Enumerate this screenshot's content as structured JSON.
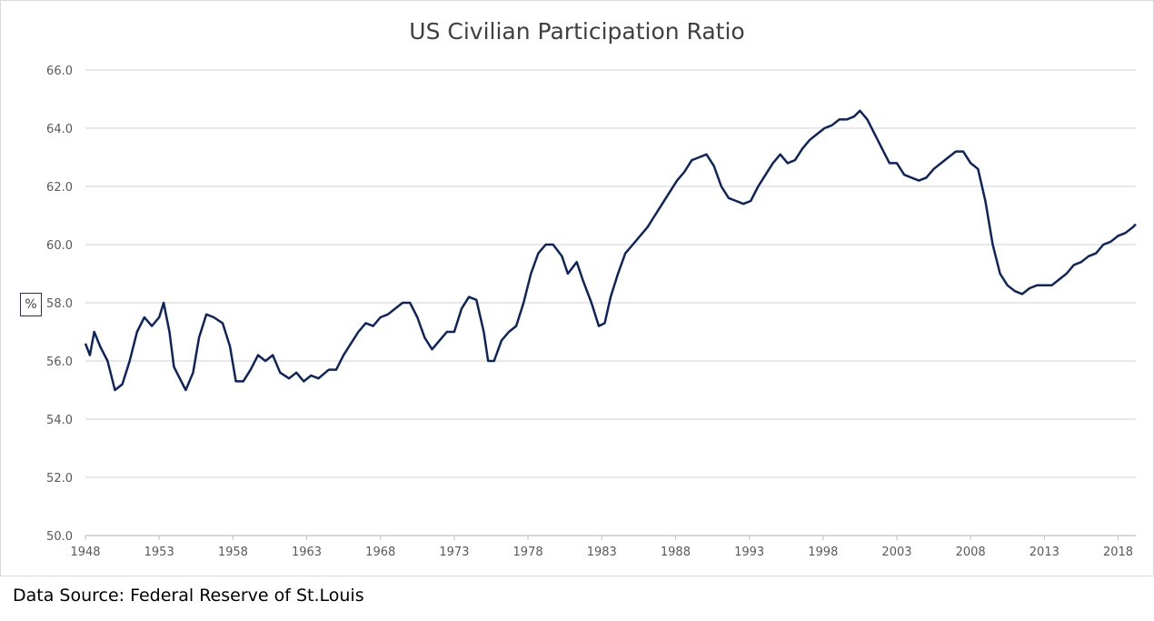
{
  "chart_data": {
    "type": "line",
    "title": "US Civilian Participation Ratio",
    "ylabel": "%",
    "xlabel": "",
    "source": "Data Source: Federal Reserve of St.Louis",
    "xlim": [
      1948,
      2019.2
    ],
    "ylim": [
      50,
      66
    ],
    "yticks": [
      "50.0",
      "52.0",
      "54.0",
      "56.0",
      "58.0",
      "60.0",
      "62.0",
      "64.0",
      "66.0"
    ],
    "xticks": [
      "1948",
      "1953",
      "1958",
      "1963",
      "1968",
      "1973",
      "1978",
      "1983",
      "1988",
      "1993",
      "1998",
      "2003",
      "2008",
      "2013",
      "2018"
    ],
    "grid": "horizontal",
    "line_color": "#0d2461",
    "x": [
      1948.0,
      1948.3,
      1948.6,
      1949.0,
      1949.5,
      1950.0,
      1950.5,
      1951.0,
      1951.5,
      1952.0,
      1952.5,
      1953.0,
      1953.3,
      1953.7,
      1954.0,
      1954.5,
      1954.8,
      1955.3,
      1955.7,
      1956.2,
      1956.7,
      1957.3,
      1957.8,
      1958.2,
      1958.7,
      1959.2,
      1959.7,
      1960.2,
      1960.7,
      1961.2,
      1961.8,
      1962.3,
      1962.8,
      1963.3,
      1963.8,
      1964.5,
      1965.0,
      1965.5,
      1966.0,
      1966.5,
      1967.0,
      1967.5,
      1968.0,
      1968.5,
      1969.0,
      1969.5,
      1970.0,
      1970.5,
      1971.0,
      1971.5,
      1972.0,
      1972.5,
      1973.0,
      1973.5,
      1974.0,
      1974.5,
      1975.0,
      1975.3,
      1975.7,
      1976.2,
      1976.7,
      1977.2,
      1977.7,
      1978.2,
      1978.7,
      1979.2,
      1979.7,
      1980.3,
      1980.7,
      1981.3,
      1981.7,
      1982.3,
      1982.8,
      1983.2,
      1983.6,
      1984.1,
      1984.6,
      1985.1,
      1985.6,
      1986.1,
      1986.6,
      1987.1,
      1987.6,
      1988.1,
      1988.6,
      1989.1,
      1989.6,
      1990.1,
      1990.6,
      1991.1,
      1991.6,
      1992.1,
      1992.6,
      1993.1,
      1993.6,
      1994.1,
      1994.6,
      1995.1,
      1995.6,
      1996.1,
      1996.6,
      1997.1,
      1997.6,
      1998.1,
      1998.6,
      1999.1,
      1999.6,
      2000.1,
      2000.5,
      2001.0,
      2001.5,
      2002.0,
      2002.5,
      2003.0,
      2003.5,
      2004.0,
      2004.5,
      2005.0,
      2005.5,
      2006.0,
      2006.5,
      2007.0,
      2007.5,
      2008.0,
      2008.5,
      2009.0,
      2009.5,
      2010.0,
      2010.5,
      2011.0,
      2011.5,
      2012.0,
      2012.5,
      2013.0,
      2013.5,
      2014.0,
      2014.5,
      2015.0,
      2015.5,
      2016.0,
      2016.5,
      2017.0,
      2017.5,
      2018.0,
      2018.5,
      2019.0,
      2019.2
    ],
    "y": [
      56.6,
      56.2,
      57.0,
      56.5,
      56.0,
      55.0,
      55.2,
      56.0,
      57.0,
      57.5,
      57.2,
      57.5,
      58.0,
      57.0,
      55.8,
      55.3,
      55.0,
      55.6,
      56.8,
      57.6,
      57.5,
      57.3,
      56.5,
      55.3,
      55.3,
      55.7,
      56.2,
      56.0,
      56.2,
      55.6,
      55.4,
      55.6,
      55.3,
      55.5,
      55.4,
      55.7,
      55.7,
      56.2,
      56.6,
      57.0,
      57.3,
      57.2,
      57.5,
      57.6,
      57.8,
      58.0,
      58.0,
      57.5,
      56.8,
      56.4,
      56.7,
      57.0,
      57.0,
      57.8,
      58.2,
      58.1,
      57.0,
      56.0,
      56.0,
      56.7,
      57.0,
      57.2,
      58.0,
      59.0,
      59.7,
      60.0,
      60.0,
      59.6,
      59.0,
      59.4,
      58.8,
      58.0,
      57.2,
      57.3,
      58.2,
      59.0,
      59.7,
      60.0,
      60.3,
      60.6,
      61.0,
      61.4,
      61.8,
      62.2,
      62.5,
      62.9,
      63.0,
      63.1,
      62.7,
      62.0,
      61.6,
      61.5,
      61.4,
      61.5,
      62.0,
      62.4,
      62.8,
      63.1,
      62.8,
      62.9,
      63.3,
      63.6,
      63.8,
      64.0,
      64.1,
      64.3,
      64.3,
      64.4,
      64.6,
      64.3,
      63.8,
      63.3,
      62.8,
      62.8,
      62.4,
      62.3,
      62.2,
      62.3,
      62.6,
      62.8,
      63.0,
      63.2,
      63.2,
      62.8,
      62.6,
      61.5,
      60.0,
      59.0,
      58.6,
      58.4,
      58.3,
      58.5,
      58.6,
      58.6,
      58.6,
      58.8,
      59.0,
      59.3,
      59.4,
      59.6,
      59.7,
      60.0,
      60.1,
      60.3,
      60.4,
      60.6,
      60.7
    ]
  }
}
